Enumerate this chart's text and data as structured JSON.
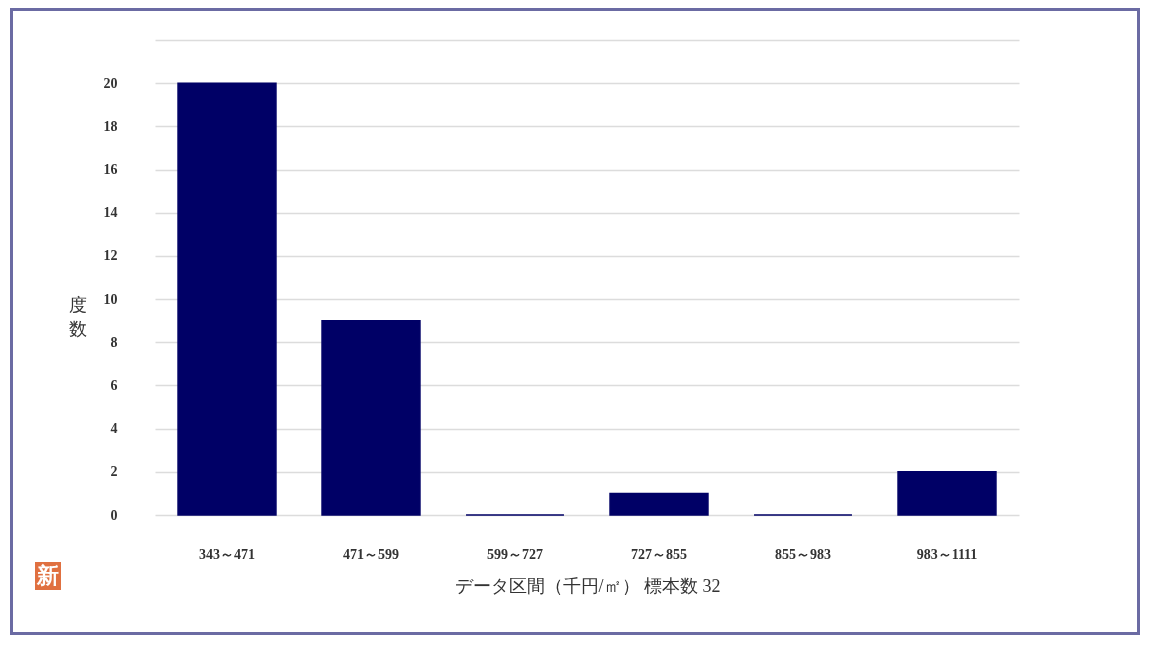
{
  "chart_data": {
    "type": "bar",
    "xlabel": "データ区間（千円/㎡） 標本数 32",
    "ylabel": "度数",
    "categories": [
      "343～471",
      "471～599",
      "599～727",
      "727～855",
      "855～983",
      "983～1111"
    ],
    "values": [
      20,
      9,
      0,
      1,
      0,
      2
    ],
    "color": "#000066",
    "ylim": [
      0,
      22
    ],
    "yticks": [
      0,
      2,
      4,
      6,
      8,
      10,
      12,
      14,
      16,
      18,
      20,
      {
        "value": 22,
        "label": null
      }
    ],
    "grid": "y",
    "annotations": [
      "新"
    ]
  }
}
